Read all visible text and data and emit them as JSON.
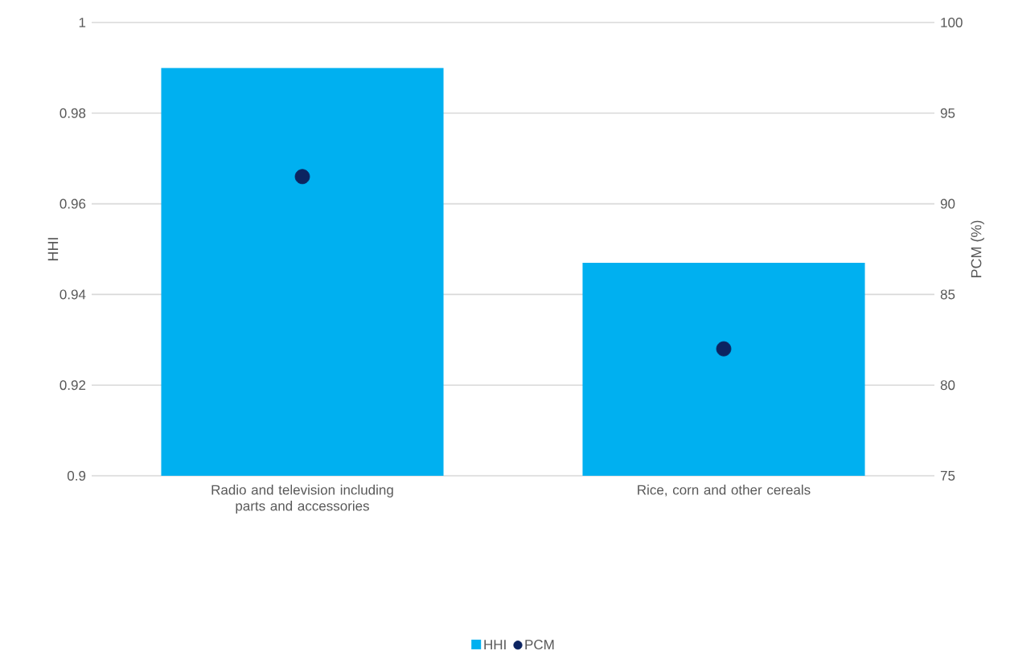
{
  "chart_data": {
    "type": "bar",
    "categories": [
      "Radio and television including parts and accessories",
      "Rice, corn and other cereals"
    ],
    "series": [
      {
        "name": "HHI",
        "color": "#00b0f0",
        "values": [
          0.99,
          0.947
        ]
      },
      {
        "name": "PCM",
        "type": "scatter",
        "axis": "y2",
        "color": "#0c2461",
        "values": [
          91.5,
          82
        ]
      }
    ],
    "ylabel": "HHI",
    "y2label": "PCM (%)",
    "ylim": [
      0.9,
      1
    ],
    "yticks": [
      0.9,
      0.92,
      0.94,
      0.96,
      0.98,
      1
    ],
    "y2lim": [
      75,
      100
    ],
    "y2ticks": [
      75,
      80,
      85,
      90,
      95,
      100
    ],
    "grid": "y",
    "legend": "bottom",
    "marker": "circle"
  }
}
